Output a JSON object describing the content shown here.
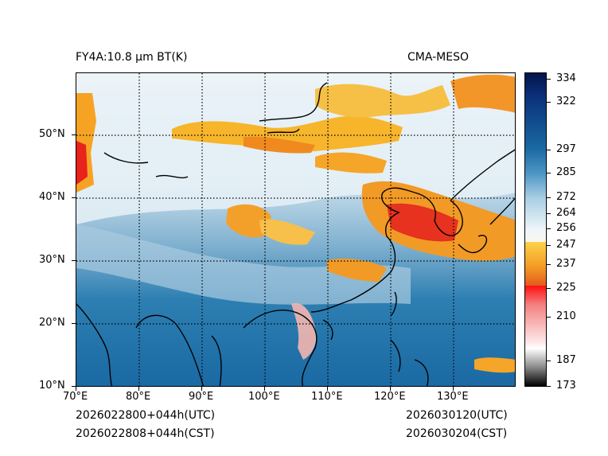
{
  "header": {
    "left_title": "FY4A:10.8 μm BT(K)",
    "right_title": "CMA-MESO"
  },
  "map": {
    "lat_labels": [
      "50°N",
      "40°N",
      "30°N",
      "20°N",
      "10°N"
    ],
    "lon_labels": [
      "70°E",
      "80°E",
      "90°E",
      "100°E",
      "110°E",
      "120°E",
      "130°E"
    ]
  },
  "colorbar": {
    "ticks": [
      "334",
      "322",
      "297",
      "285",
      "272",
      "264",
      "256",
      "247",
      "237",
      "225",
      "210",
      "187",
      "173"
    ]
  },
  "footer": {
    "init_utc": "2026022800+044h(UTC)",
    "init_cst": "2026022808+044h(CST)",
    "valid_utc": "2026030120(UTC)",
    "valid_cst": "2026030204(CST)"
  }
}
